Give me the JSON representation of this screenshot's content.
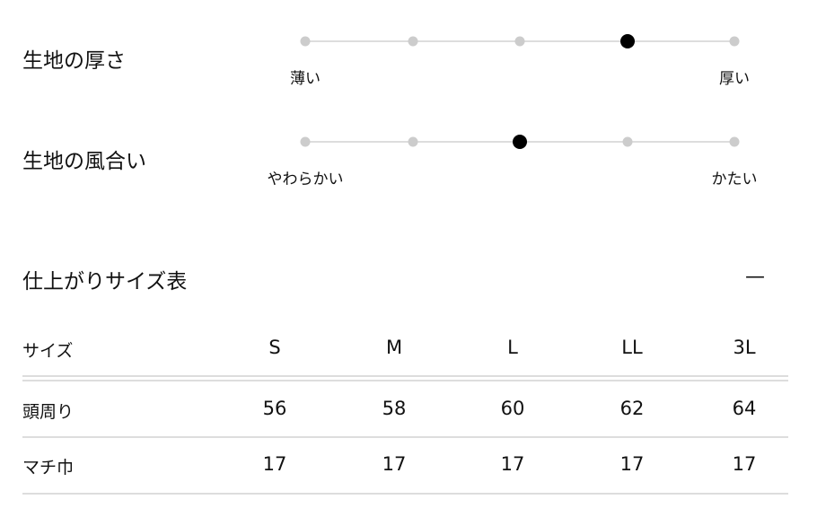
{
  "scales": [
    {
      "title": "生地の厚さ",
      "min_label": "薄い",
      "max_label": "厚い",
      "steps": 5,
      "selected": 4
    },
    {
      "title": "生地の風合い",
      "min_label": "やわらかい",
      "max_label": "かたい",
      "steps": 5,
      "selected": 3
    }
  ],
  "size_table": {
    "title": "仕上がりサイズ表",
    "toggle": "—",
    "header": {
      "label": "サイズ",
      "cols": [
        "S",
        "M",
        "L",
        "LL",
        "3L"
      ]
    },
    "rows": [
      {
        "label": "頭周り",
        "values": [
          "56",
          "58",
          "60",
          "62",
          "64"
        ]
      },
      {
        "label": "マチ巾",
        "values": [
          "17",
          "17",
          "17",
          "17",
          "17"
        ]
      }
    ]
  },
  "colors": {
    "selected": "#000000",
    "unselected": "#cccccc",
    "track": "#dddddd"
  }
}
